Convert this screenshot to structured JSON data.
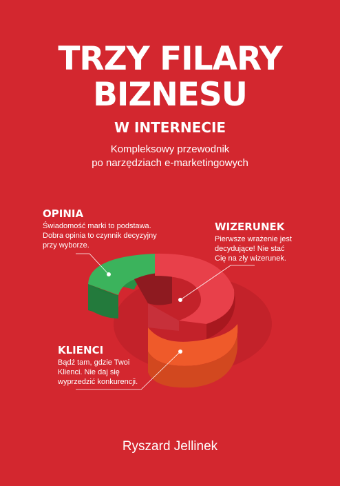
{
  "title": {
    "line1": "TRZY FILARY",
    "line2": "BIZNESU",
    "line3": "W INTERNECIE"
  },
  "subtitle": {
    "line1": "Kompleksowy przewodnik",
    "line2": "po narzędziach e-marketingowych"
  },
  "pillars": {
    "opinia": {
      "heading": "OPINIA",
      "lines": [
        "Świadomość marki to podstawa.",
        "Dobra opinia to czynnik decyzyjny",
        "przy wyborze."
      ]
    },
    "wizerunek": {
      "heading": "WIZERUNEK",
      "lines": [
        "Pierwsze wrażenie jest",
        "decydujące! Nie stać",
        "Cię na zły wizerunek."
      ]
    },
    "klienci": {
      "heading": "KLIENCI",
      "lines": [
        "Bądź tam, gdzie Twoi",
        "Klienci. Nie daj się",
        "wyprzedzić konkurencji."
      ]
    }
  },
  "author": "Ryszard Jellinek",
  "colors": {
    "background": "#d3272f",
    "green": "#3bb35c",
    "red_segment": "#e8404a",
    "orange": "#ef5a2a",
    "text": "#ffffff"
  }
}
